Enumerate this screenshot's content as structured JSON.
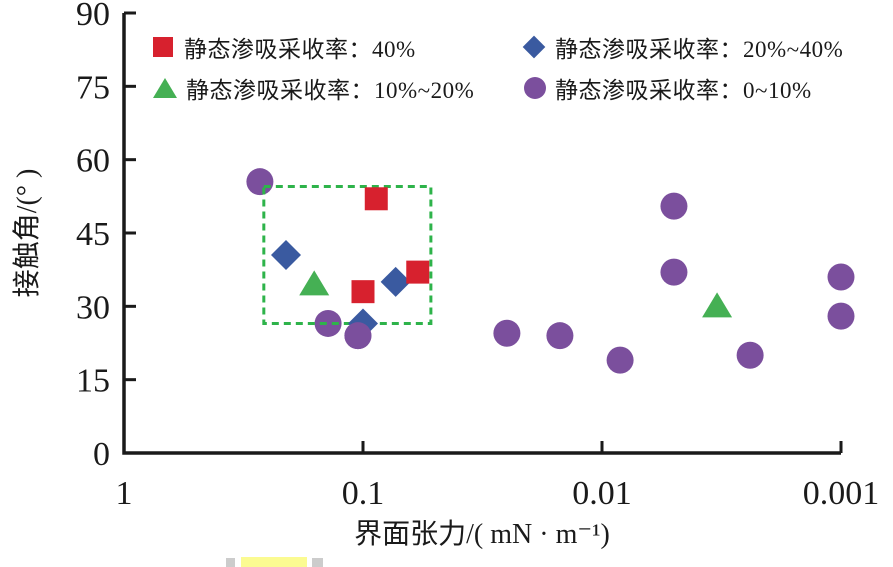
{
  "legend": {
    "items": [
      {
        "label": "静态渗吸采收率：40%",
        "marker": "square",
        "color": "#d7212e"
      },
      {
        "label": "静态渗吸采收率：20%~40%",
        "marker": "diamond",
        "color": "#3a5aa0"
      },
      {
        "label": "静态渗吸采收率：10%~20%",
        "marker": "triangle",
        "color": "#45b054"
      },
      {
        "label": "静态渗吸采收率：0~10%",
        "marker": "circle",
        "color": "#7b4f9d"
      }
    ]
  },
  "chart_data": {
    "type": "scatter",
    "title": "",
    "xlabel": "界面张力/( mN · m⁻¹)",
    "ylabel": "接触角/(° )",
    "x_scale": "log10-reversed",
    "xlim": [
      1,
      0.001
    ],
    "ylim": [
      0,
      90
    ],
    "x_ticks": [
      1,
      0.1,
      0.01,
      0.001
    ],
    "x_tick_labels": [
      "1",
      "0.1",
      "0.01",
      "0.001"
    ],
    "y_ticks": [
      0,
      15,
      30,
      45,
      60,
      75,
      90
    ],
    "grid": false,
    "legend_position": "top",
    "axis_color": "#1a1a1a",
    "annotation_box": {
      "x_range": [
        0.26,
        0.052
      ],
      "y_range": [
        26.5,
        54.5
      ],
      "color": "#2eb34a",
      "style": "dashed"
    },
    "series": [
      {
        "name": "静态渗吸采收率：40%",
        "marker": "square",
        "color": "#d7212e",
        "points": [
          [
            0.088,
            52
          ],
          [
            0.1,
            33
          ],
          [
            0.059,
            37
          ]
        ]
      },
      {
        "name": "静态渗吸采收率：20%~40%",
        "marker": "diamond",
        "color": "#3a5aa0",
        "points": [
          [
            0.21,
            40.5
          ],
          [
            0.073,
            35
          ],
          [
            0.1,
            26.5
          ]
        ]
      },
      {
        "name": "静态渗吸采收率：10%~20%",
        "marker": "triangle",
        "color": "#45b054",
        "points": [
          [
            0.16,
            34.5
          ],
          [
            0.0033,
            30
          ]
        ]
      },
      {
        "name": "静态渗吸采收率：0~10%",
        "marker": "circle",
        "color": "#7b4f9d",
        "points": [
          [
            0.27,
            55.5
          ],
          [
            0.14,
            26.5
          ],
          [
            0.105,
            24
          ],
          [
            0.025,
            24.5
          ],
          [
            0.015,
            24
          ],
          [
            0.0084,
            19
          ],
          [
            0.005,
            50.5
          ],
          [
            0.005,
            37
          ],
          [
            0.0024,
            20
          ],
          [
            0.001,
            36
          ],
          [
            0.001,
            28
          ]
        ]
      }
    ]
  }
}
